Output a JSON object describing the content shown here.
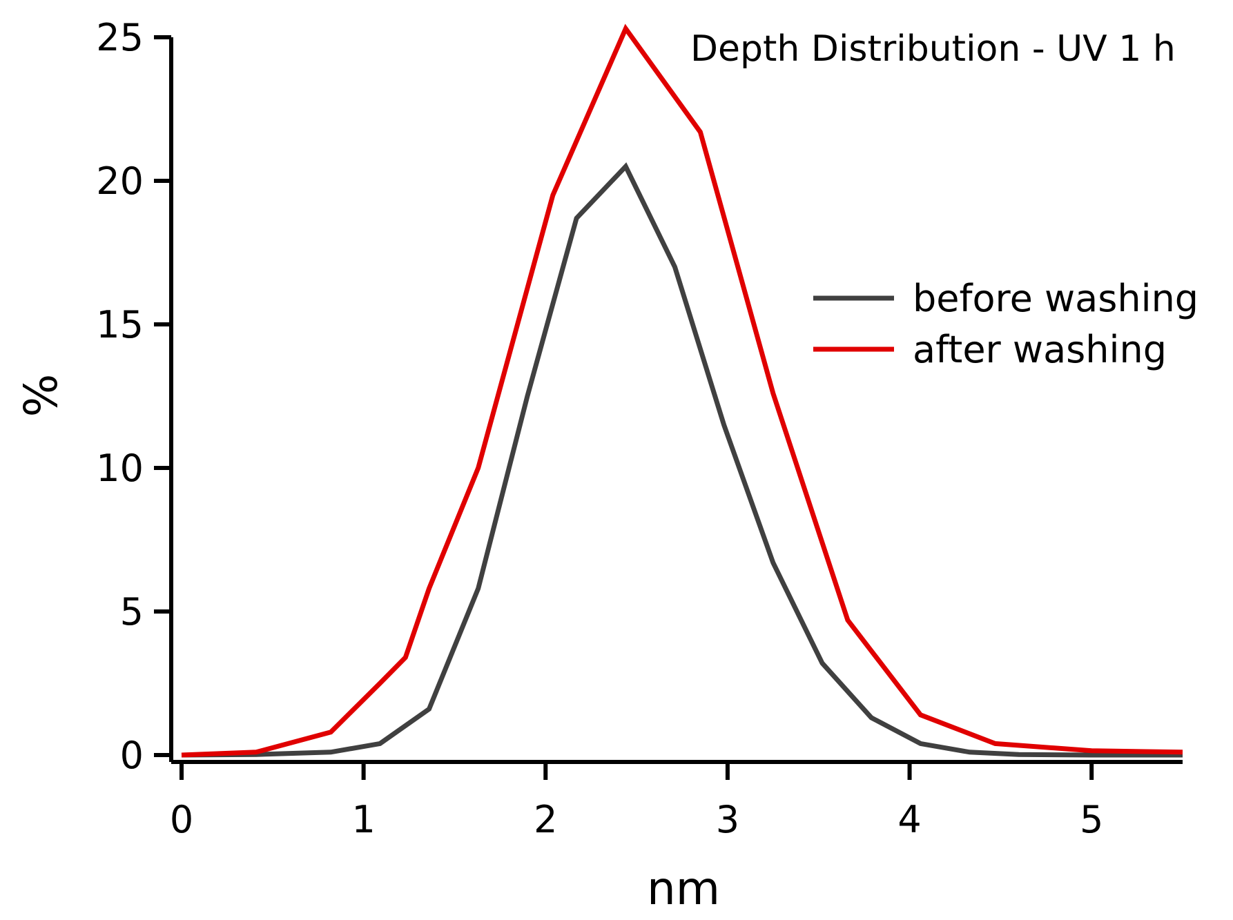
{
  "chart_data": {
    "type": "line",
    "title": "Depth Distribution - UV 1 h",
    "xlabel": "nm",
    "ylabel": "%",
    "xlim": [
      0,
      5.5
    ],
    "ylim": [
      0,
      25
    ],
    "xticks": [
      0,
      1,
      2,
      3,
      4,
      5
    ],
    "yticks": [
      0,
      5,
      10,
      15,
      20,
      25
    ],
    "grid": false,
    "legend_position": "right",
    "series": [
      {
        "name": "before washing",
        "color": "#404040",
        "x": [
          0,
          0.41,
          0.82,
          1.09,
          1.36,
          1.63,
          1.9,
          2.17,
          2.44,
          2.71,
          2.98,
          3.25,
          3.52,
          3.79,
          4.06,
          4.33,
          4.6,
          5.0,
          5.5
        ],
        "y": [
          0,
          0.02,
          0.1,
          0.4,
          1.6,
          5.8,
          12.5,
          18.7,
          20.5,
          17.0,
          11.5,
          6.7,
          3.2,
          1.3,
          0.4,
          0.1,
          0.02,
          0.0,
          0.0
        ]
      },
      {
        "name": "after washing",
        "color": "#e00000",
        "x": [
          0,
          0.41,
          0.82,
          1.09,
          1.23,
          1.36,
          1.63,
          2.04,
          2.44,
          2.85,
          3.25,
          3.66,
          4.06,
          4.47,
          5.0,
          5.5
        ],
        "y": [
          0,
          0.1,
          0.8,
          2.5,
          3.4,
          5.8,
          10.0,
          19.5,
          25.3,
          21.7,
          12.6,
          4.7,
          1.4,
          0.4,
          0.15,
          0.1
        ]
      }
    ]
  }
}
